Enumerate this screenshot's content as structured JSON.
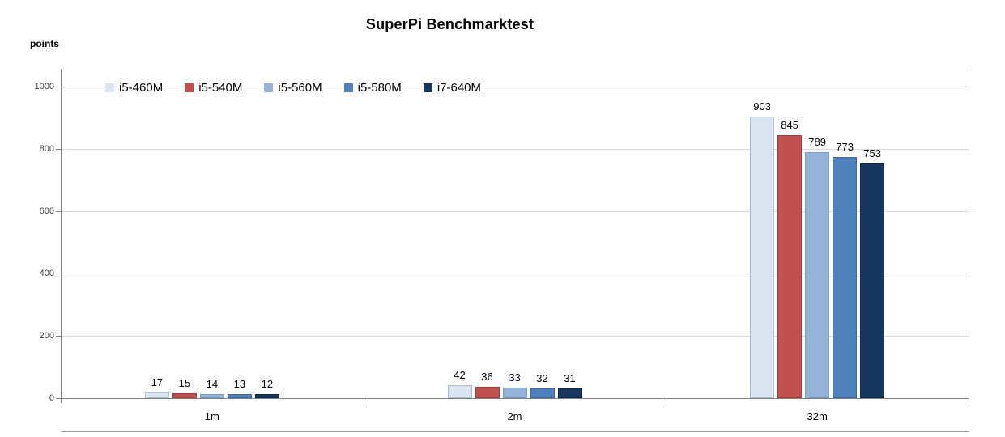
{
  "chart_data": {
    "type": "bar",
    "title": "SuperPi Benchmarktest",
    "ylabel": "points",
    "xlabel": "",
    "categories": [
      "1m",
      "2m",
      "32m"
    ],
    "series": [
      {
        "name": "i5-460M",
        "color": "#dbe5f1",
        "border_color": "#aebfd4",
        "values": [
          17,
          42,
          903
        ]
      },
      {
        "name": "i5-540M",
        "color": "#c0504d",
        "border_color": "#a03f3d",
        "values": [
          15,
          36,
          845
        ]
      },
      {
        "name": "i5-560M",
        "color": "#95b3d7",
        "border_color": "#7a9cc4",
        "values": [
          14,
          33,
          789
        ]
      },
      {
        "name": "i5-580M",
        "color": "#4f81bd",
        "border_color": "#3e699c",
        "values": [
          13,
          32,
          773
        ]
      },
      {
        "name": "i7-640M",
        "color": "#17375e",
        "border_color": "#102944",
        "values": [
          12,
          31,
          753
        ]
      }
    ],
    "ylim": [
      0,
      1000
    ],
    "ytick_interval": 200,
    "ytick_labels": [
      "0",
      "200",
      "400",
      "600",
      "800",
      "1000"
    ],
    "grid": true,
    "legend_position": "top-left-inside",
    "data_labels": true
  }
}
